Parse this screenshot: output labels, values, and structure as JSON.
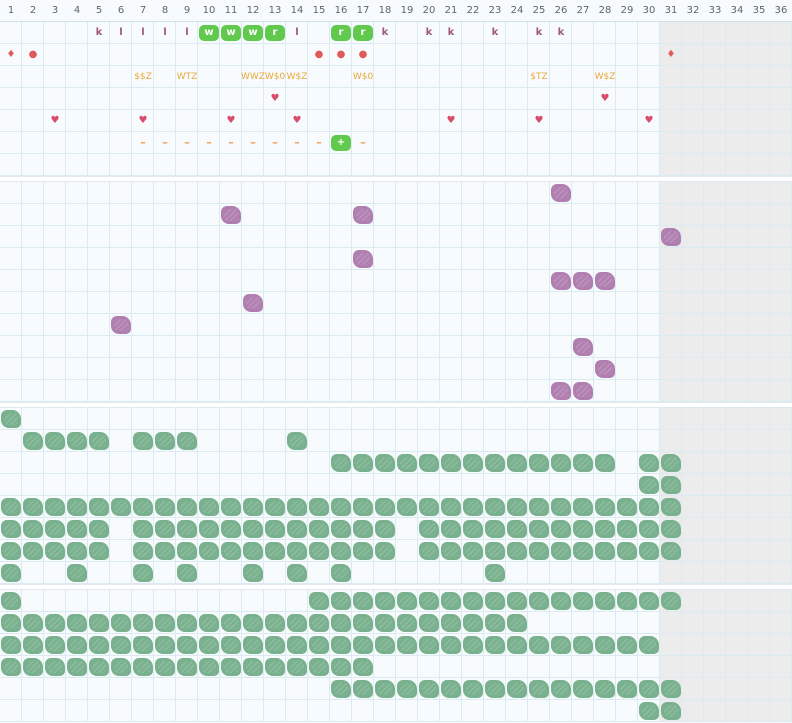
{
  "header": {
    "columns": [
      "1",
      "2",
      "3",
      "4",
      "5",
      "6",
      "7",
      "8",
      "9",
      "10",
      "11",
      "12",
      "13",
      "14",
      "15",
      "16",
      "17",
      "18",
      "19",
      "20",
      "21",
      "22",
      "23",
      "24",
      "25",
      "26",
      "27",
      "28",
      "29",
      "30",
      "31",
      "32",
      "33",
      "34",
      "35",
      "36"
    ]
  },
  "symbols": [
    {
      "text": "k",
      "cls": "k",
      "col": 5,
      "row": 1
    },
    {
      "text": "l",
      "cls": "k",
      "col": 6,
      "row": 1
    },
    {
      "text": "l",
      "cls": "k",
      "col": 7,
      "row": 1
    },
    {
      "text": "l",
      "cls": "k",
      "col": 8,
      "row": 1
    },
    {
      "text": "l",
      "cls": "k",
      "col": 9,
      "row": 1
    },
    {
      "text": "l",
      "cls": "k",
      "col": 14,
      "row": 1
    },
    {
      "text": "k",
      "cls": "k",
      "col": 18,
      "row": 1
    },
    {
      "text": "k",
      "cls": "k",
      "col": 20,
      "row": 1
    },
    {
      "text": "k",
      "cls": "k",
      "col": 21,
      "row": 1
    },
    {
      "text": "k",
      "cls": "k",
      "col": 23,
      "row": 1
    },
    {
      "text": "k",
      "cls": "k",
      "col": 25,
      "row": 1
    },
    {
      "text": "k",
      "cls": "k",
      "col": 26,
      "row": 1
    },
    {
      "text": "♦",
      "cls": "dot",
      "col": 1,
      "row": 2
    },
    {
      "text": "●",
      "cls": "dot",
      "col": 2,
      "row": 2
    },
    {
      "text": "●",
      "cls": "dot",
      "col": 15,
      "row": 2
    },
    {
      "text": "●",
      "cls": "dot",
      "col": 16,
      "row": 2
    },
    {
      "text": "●",
      "cls": "dot",
      "col": 17,
      "row": 2
    },
    {
      "text": "♦",
      "cls": "dot",
      "col": 31,
      "row": 2
    },
    {
      "text": "$$Z",
      "cls": "money",
      "col": 7,
      "row": 3
    },
    {
      "text": "WTZ",
      "cls": "money",
      "col": 9,
      "row": 3
    },
    {
      "text": "WWZ",
      "cls": "money",
      "col": 12,
      "row": 3
    },
    {
      "text": "W$0",
      "cls": "money",
      "col": 13,
      "row": 3
    },
    {
      "text": "W$Z",
      "cls": "money",
      "col": 14,
      "row": 3
    },
    {
      "text": "W$0",
      "cls": "money",
      "col": 17,
      "row": 3
    },
    {
      "text": "$TZ",
      "cls": "money",
      "col": 25,
      "row": 3
    },
    {
      "text": "W$Z",
      "cls": "money",
      "col": 28,
      "row": 3
    },
    {
      "text": "♥",
      "cls": "heart",
      "col": 13,
      "row": 4
    },
    {
      "text": "♥",
      "cls": "heart",
      "col": 28,
      "row": 4
    },
    {
      "text": "♥",
      "cls": "heart",
      "col": 3,
      "row": 5
    },
    {
      "text": "♥",
      "cls": "heart",
      "col": 7,
      "row": 5
    },
    {
      "text": "♥",
      "cls": "heart",
      "col": 11,
      "row": 5
    },
    {
      "text": "♥",
      "cls": "heart",
      "col": 14,
      "row": 5
    },
    {
      "text": "♥",
      "cls": "heart",
      "col": 21,
      "row": 5
    },
    {
      "text": "♥",
      "cls": "heart",
      "col": 25,
      "row": 5
    },
    {
      "text": "♥",
      "cls": "heart",
      "col": 30,
      "row": 5
    },
    {
      "text": "–",
      "cls": "dash",
      "col": 7,
      "row": 6
    },
    {
      "text": "–",
      "cls": "dash",
      "col": 8,
      "row": 6
    },
    {
      "text": "–",
      "cls": "dash",
      "col": 9,
      "row": 6
    },
    {
      "text": "–",
      "cls": "dash",
      "col": 10,
      "row": 6
    },
    {
      "text": "–",
      "cls": "dash",
      "col": 11,
      "row": 6
    },
    {
      "text": "–",
      "cls": "dash",
      "col": 12,
      "row": 6
    },
    {
      "text": "–",
      "cls": "dash",
      "col": 13,
      "row": 6
    },
    {
      "text": "–",
      "cls": "dash",
      "col": 14,
      "row": 6
    },
    {
      "text": "–",
      "cls": "dash",
      "col": 15,
      "row": 6
    },
    {
      "text": "–",
      "cls": "dash",
      "col": 17,
      "row": 6
    }
  ],
  "tags": [
    {
      "text": "w",
      "col": 10,
      "row": 1
    },
    {
      "text": "w",
      "col": 11,
      "row": 1
    },
    {
      "text": "w",
      "col": 12,
      "row": 1
    },
    {
      "text": "r",
      "col": 13,
      "row": 1
    },
    {
      "text": "r",
      "col": 16,
      "row": 1
    },
    {
      "text": "r",
      "col": 17,
      "row": 1
    },
    {
      "text": "+",
      "col": 16,
      "row": 6
    }
  ],
  "purple_blobs": [
    [
      26,
      8
    ],
    [
      11,
      9
    ],
    [
      17,
      9
    ],
    [
      31,
      10
    ],
    [
      17,
      11
    ],
    [
      26,
      12
    ],
    [
      27,
      12
    ],
    [
      28,
      12
    ],
    [
      12,
      13
    ],
    [
      6,
      14
    ],
    [
      27,
      15
    ],
    [
      28,
      16
    ],
    [
      26,
      17
    ],
    [
      27,
      17
    ]
  ],
  "green_rows": [
    {
      "row": 18,
      "cols": [
        1
      ]
    },
    {
      "row": 19,
      "cols": [
        2,
        3,
        4,
        5,
        7,
        8,
        9,
        14
      ]
    },
    {
      "row": 20,
      "cols": [
        16,
        17,
        18,
        19,
        20,
        21,
        22,
        23,
        24,
        25,
        26,
        27,
        28,
        30,
        31
      ]
    },
    {
      "row": 21,
      "cols": [
        30,
        31
      ]
    },
    {
      "row": 22,
      "cols": [
        1,
        2,
        3,
        4,
        5,
        6,
        7,
        8,
        9,
        10,
        11,
        12,
        13,
        14,
        15,
        16,
        17,
        18,
        19,
        20,
        21,
        22,
        23,
        24,
        25,
        26,
        27,
        28,
        29,
        30,
        31
      ]
    },
    {
      "row": 23,
      "cols": [
        1,
        2,
        3,
        4,
        5,
        7,
        8,
        9,
        10,
        11,
        12,
        13,
        14,
        15,
        16,
        17,
        18,
        20,
        21,
        22,
        23,
        24,
        25,
        26,
        27,
        28,
        29,
        30,
        31
      ]
    },
    {
      "row": 24,
      "cols": [
        1,
        2,
        3,
        4,
        5,
        7,
        8,
        9,
        10,
        11,
        12,
        13,
        14,
        15,
        16,
        17,
        18,
        20,
        21,
        22,
        23,
        24,
        25,
        26,
        27,
        28,
        29,
        30,
        31
      ]
    },
    {
      "row": 25,
      "cols": [
        1,
        4,
        7,
        9,
        12,
        14,
        16,
        23
      ]
    },
    {
      "row": 27,
      "cols": [
        1,
        15,
        16,
        17,
        18,
        19,
        20,
        21,
        22,
        23,
        24,
        25,
        26,
        27,
        28,
        29,
        30,
        31
      ]
    },
    {
      "row": 28,
      "cols": [
        1,
        2,
        3,
        4,
        5,
        6,
        7,
        8,
        9,
        10,
        11,
        12,
        13,
        14,
        15,
        16,
        17,
        18,
        19,
        20,
        21,
        22,
        23,
        24
      ]
    },
    {
      "row": 29,
      "cols": [
        1,
        2,
        3,
        4,
        5,
        6,
        7,
        8,
        9,
        10,
        11,
        12,
        13,
        14,
        15,
        16,
        17,
        18,
        19,
        20,
        21,
        22,
        23,
        24,
        25,
        26,
        27,
        28,
        29,
        30
      ]
    },
    {
      "row": 30,
      "cols": [
        1,
        2,
        3,
        4,
        5,
        6,
        7,
        8,
        9,
        10,
        11,
        12,
        13,
        14,
        15,
        16,
        17
      ]
    },
    {
      "row": 31,
      "cols": [
        16,
        17,
        18,
        19,
        20,
        21,
        22,
        23,
        24,
        25,
        26,
        27,
        28,
        29,
        30,
        31
      ]
    },
    {
      "row": 32,
      "cols": [
        30,
        31
      ]
    }
  ],
  "colors": {
    "grid_line": "#dcebf1",
    "grid_line_strong": "#cfe1e8",
    "disabled_bg": "#ececec",
    "green": "#79b08d",
    "purple": "#b07fb0",
    "tag_green": "#61c94d"
  }
}
